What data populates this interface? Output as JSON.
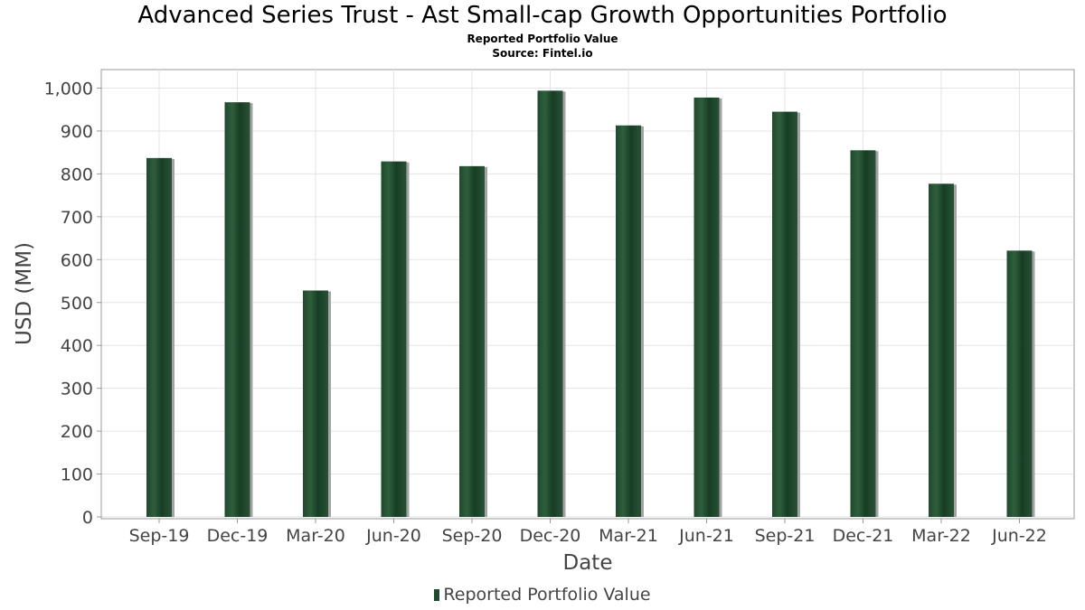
{
  "chart_data": {
    "type": "bar",
    "title": "Advanced Series Trust - Ast Small-cap Growth Opportunities Portfolio",
    "subtitle": "Reported Portfolio Value",
    "source": "Source: Fintel.io",
    "xlabel": "Date",
    "ylabel": "USD (MM)",
    "ylim": [
      0,
      1050
    ],
    "yticks": [
      0,
      100,
      200,
      300,
      400,
      500,
      600,
      700,
      800,
      900,
      1000
    ],
    "ytick_labels": [
      "0",
      "100",
      "200",
      "300",
      "400",
      "500",
      "600",
      "700",
      "800",
      "900",
      "1,000"
    ],
    "categories": [
      "Sep-19",
      "Dec-19",
      "Mar-20",
      "Jun-20",
      "Sep-20",
      "Dec-20",
      "Mar-21",
      "Jun-21",
      "Sep-21",
      "Dec-21",
      "Mar-22",
      "Jun-22"
    ],
    "series": [
      {
        "name": "Reported Portfolio Value",
        "values": [
          837,
          967,
          528,
          829,
          818,
          994,
          913,
          978,
          945,
          855,
          777,
          621
        ]
      }
    ],
    "grid": true,
    "legend_position": "bottom",
    "bar_color": "#1e4a2e"
  }
}
